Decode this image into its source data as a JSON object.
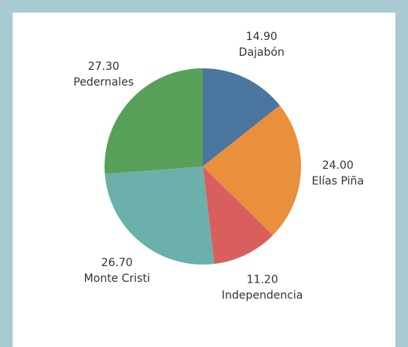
{
  "chart_data": {
    "type": "pie",
    "categories": [
      "Dajabón",
      "Elías Piña",
      "Independencia",
      "Monte Cristi",
      "Pedernales"
    ],
    "values": [
      14.9,
      24.0,
      11.2,
      26.7,
      27.3
    ],
    "value_labels": [
      "14.90",
      "24.00",
      "11.20",
      "26.70",
      "27.30"
    ],
    "colors": [
      "#4a76a0",
      "#ea8f3c",
      "#d95f5e",
      "#6bb0ab",
      "#58a05a"
    ]
  }
}
